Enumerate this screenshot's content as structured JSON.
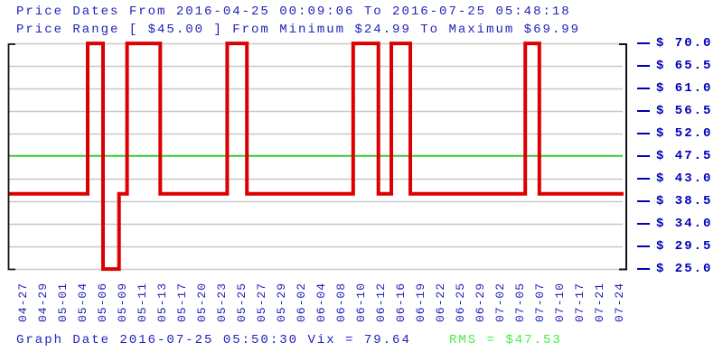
{
  "header": {
    "line1": "Price Dates From 2016-04-25 00:09:06 To 2016-07-25 05:48:18",
    "line2": "Price Range [ $45.00 ] From Minimum $24.99 To Maximum $69.99"
  },
  "footer": {
    "graph_info": "Graph Date 2016-07-25 05:50:30 Vix = 79.64",
    "rms_label": "RMS = $47.53"
  },
  "colors": {
    "header_blue": "#2222bb",
    "axis_label_blue": "#0000bb",
    "price_line_red": "#dd0000",
    "rms_line_green": "#33cc33",
    "rms_text_green": "#44ee44",
    "gridline_gray": "#c8c8c8",
    "frame_black": "#111111",
    "background": "#ffffff"
  },
  "chart_data": {
    "type": "line",
    "step": true,
    "title": "Price Dates From 2016-04-25 00:09:06 To 2016-07-25 05:48:18",
    "subtitle": "Price Range [ $45.00 ] From Minimum $24.99 To Maximum $69.99",
    "price_range": 45.0,
    "min_price": 24.99,
    "max_price": 69.99,
    "vix": 79.64,
    "rms_value": 47.53,
    "graph_date": "2016-07-25 05:50:30",
    "ylim": [
      25.0,
      70.0
    ],
    "grid": true,
    "legend_position": "none",
    "y_ticks": [
      70.0,
      65.5,
      61.0,
      56.5,
      52.0,
      47.5,
      43.0,
      38.5,
      34.0,
      29.5,
      25.0
    ],
    "y_tick_labels": [
      "$ 70.0",
      "$ 65.5",
      "$ 61.0",
      "$ 56.5",
      "$ 52.0",
      "$ 47.5",
      "$ 43.0",
      "$ 38.5",
      "$ 34.0",
      "$ 29.5",
      "$ 25.0"
    ],
    "x_tick_labels": [
      "04-27",
      "04-29",
      "05-01",
      "05-04",
      "05-06",
      "05-09",
      "05-11",
      "05-13",
      "05-17",
      "05-20",
      "05-23",
      "05-25",
      "05-27",
      "05-29",
      "06-02",
      "06-04",
      "06-08",
      "06-10",
      "06-12",
      "06-16",
      "06-19",
      "06-22",
      "06-25",
      "06-29",
      "07-02",
      "07-05",
      "07-07",
      "07-10",
      "07-17",
      "07-21",
      "07-24"
    ],
    "series": [
      {
        "name": "price",
        "color": "#dd0000",
        "points_pct_value": [
          [
            0,
            40.0
          ],
          [
            12.8,
            40.0
          ],
          [
            12.8,
            69.99
          ],
          [
            15.3,
            69.99
          ],
          [
            15.3,
            24.99
          ],
          [
            17.9,
            24.99
          ],
          [
            17.9,
            40.0
          ],
          [
            19.2,
            40.0
          ],
          [
            19.2,
            69.99
          ],
          [
            24.6,
            69.99
          ],
          [
            24.6,
            40.0
          ],
          [
            35.5,
            40.0
          ],
          [
            35.5,
            69.99
          ],
          [
            38.7,
            69.99
          ],
          [
            38.7,
            40.0
          ],
          [
            56.0,
            40.0
          ],
          [
            56.0,
            69.99
          ],
          [
            60.1,
            69.99
          ],
          [
            60.1,
            40.0
          ],
          [
            62.2,
            40.0
          ],
          [
            62.2,
            69.99
          ],
          [
            65.3,
            69.99
          ],
          [
            65.3,
            40.0
          ],
          [
            84.0,
            40.0
          ],
          [
            84.0,
            69.99
          ],
          [
            86.3,
            69.99
          ],
          [
            86.3,
            40.0
          ],
          [
            100,
            40.0
          ]
        ],
        "segments": [
          {
            "start": "2016-04-25",
            "end": "2016-05-04",
            "price": 40.0
          },
          {
            "start": "2016-05-04",
            "end": "2016-05-06",
            "price": 69.99
          },
          {
            "start": "2016-05-06",
            "end": "2016-05-09",
            "price": 24.99
          },
          {
            "start": "2016-05-09",
            "end": "2016-05-09",
            "price": 40.0
          },
          {
            "start": "2016-05-09",
            "end": "2016-05-13",
            "price": 69.99
          },
          {
            "start": "2016-05-13",
            "end": "2016-05-23",
            "price": 40.0
          },
          {
            "start": "2016-05-23",
            "end": "2016-05-25",
            "price": 69.99
          },
          {
            "start": "2016-05-25",
            "end": "2016-06-09",
            "price": 40.0
          },
          {
            "start": "2016-06-09",
            "end": "2016-06-11",
            "price": 69.99
          },
          {
            "start": "2016-06-11",
            "end": "2016-06-13",
            "price": 40.0
          },
          {
            "start": "2016-06-13",
            "end": "2016-06-16",
            "price": 69.99
          },
          {
            "start": "2016-06-16",
            "end": "2016-07-05",
            "price": 40.0
          },
          {
            "start": "2016-07-05",
            "end": "2016-07-07",
            "price": 69.99
          },
          {
            "start": "2016-07-07",
            "end": "2016-07-25",
            "price": 40.0
          }
        ]
      }
    ]
  }
}
